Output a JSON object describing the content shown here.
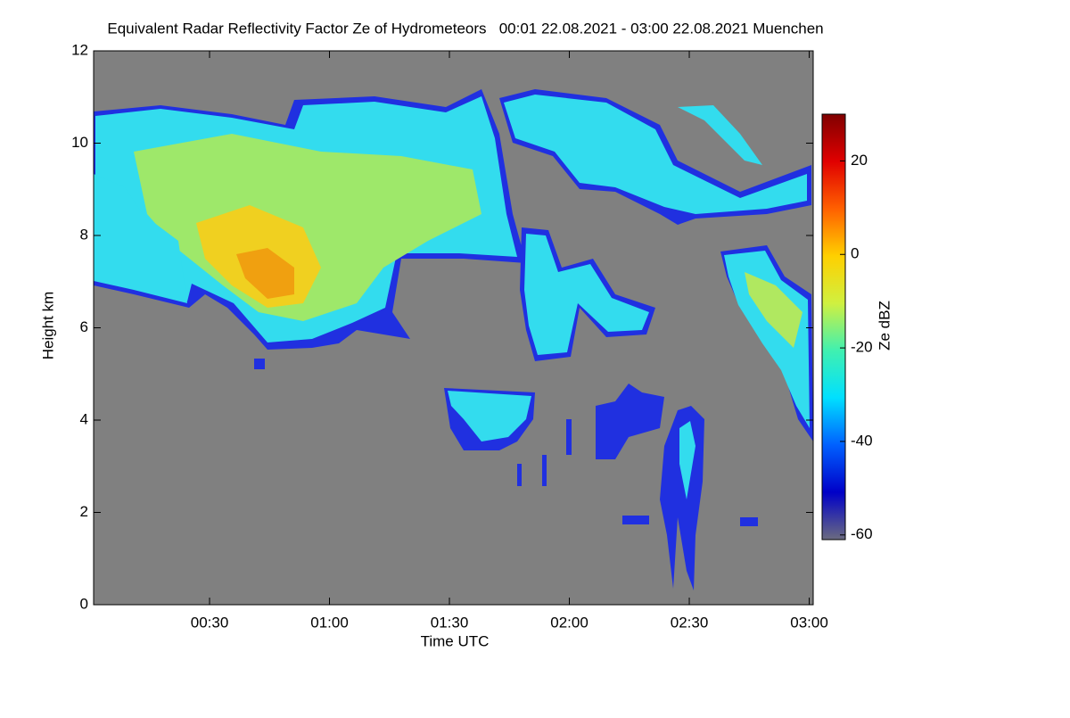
{
  "chart_data": {
    "type": "heatmap",
    "title": "Equivalent Radar Reflectivity Factor Ze of Hydrometeors   00:01 22.08.2021 - 03:00 22.08.2021 Muenchen",
    "xlabel": "Time UTC",
    "ylabel": "Height km",
    "colorbar_label": "Ze dBZ",
    "xlim": [
      1,
      181
    ],
    "xticks": [
      {
        "value": 30,
        "label": "00:30"
      },
      {
        "value": 60,
        "label": "01:00"
      },
      {
        "value": 90,
        "label": "01:30"
      },
      {
        "value": 120,
        "label": "02:00"
      },
      {
        "value": 150,
        "label": "02:30"
      },
      {
        "value": 180,
        "label": "03:00"
      }
    ],
    "ylim": [
      0,
      12
    ],
    "yticks": [
      0,
      2,
      4,
      6,
      8,
      10,
      12
    ],
    "clim": [
      -61,
      30
    ],
    "cticks": [
      -60,
      -40,
      -20,
      0,
      20
    ],
    "background": "#808080",
    "colormap": [
      "#6b6b80",
      "#0000c8",
      "#0060ff",
      "#00e0ff",
      "#40f0b0",
      "#d0f040",
      "#ffd000",
      "#ff6000",
      "#e00000",
      "#800000"
    ]
  }
}
